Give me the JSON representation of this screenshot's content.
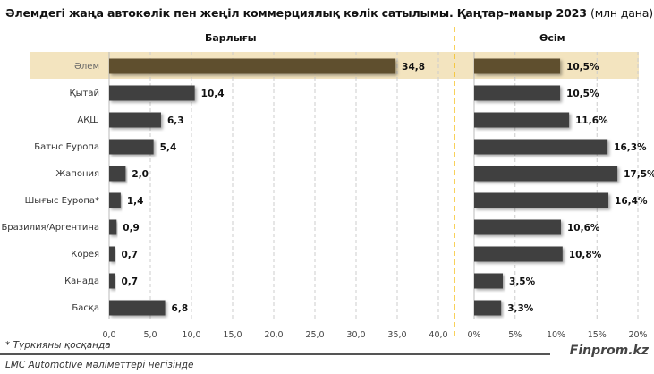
{
  "title": {
    "main": "Әлемдегі жаңа автокөлік пен жеңіл коммерциялық көлік сатылымы. Қаңтар–мамыр 2023",
    "unit": "(млн дана)"
  },
  "colors": {
    "bar": "#404040",
    "highlight_bar": "#5e4f2e",
    "highlight_band": "#f3e4bf",
    "divider": "#f5b800",
    "grid": "#cccccc"
  },
  "chart_data": [
    {
      "type": "bar",
      "orientation": "horizontal",
      "title": "Барлығы",
      "categories": [
        "Әлем",
        "Қытай",
        "АҚШ",
        "Батыс Еуропа",
        "Жапония",
        "Шығыс Еуропа*",
        "Бразилия/Аргентина",
        "Корея",
        "Канада",
        "Басқа"
      ],
      "values": [
        34.8,
        10.4,
        6.3,
        5.4,
        2.0,
        1.4,
        0.9,
        0.7,
        0.7,
        6.8
      ],
      "labels": [
        "34,8",
        "10,4",
        "6,3",
        "5,4",
        "2,0",
        "1,4",
        "0,9",
        "0,7",
        "0,7",
        "6,8"
      ],
      "xlim": [
        0,
        40
      ],
      "ticks": [
        0,
        5,
        10,
        15,
        20,
        25,
        30,
        35,
        40
      ],
      "tick_labels": [
        "0,0",
        "5,0",
        "10,0",
        "15,0",
        "20,0",
        "25,0",
        "30,0",
        "35,0",
        "40,0"
      ],
      "highlight": "Әлем",
      "grid": true
    },
    {
      "type": "bar",
      "orientation": "horizontal",
      "title": "Өсім",
      "categories": [
        "Әлем",
        "Қытай",
        "АҚШ",
        "Батыс Еуропа",
        "Жапония",
        "Шығыс Еуропа*",
        "Бразилия/Аргентина",
        "Корея",
        "Канада",
        "Басқа"
      ],
      "values": [
        10.5,
        10.5,
        11.6,
        16.3,
        17.5,
        16.4,
        10.6,
        10.8,
        3.5,
        3.3
      ],
      "labels": [
        "10,5%",
        "10,5%",
        "11,6%",
        "16,3%",
        "17,5%",
        "16,4%",
        "10,6%",
        "10,8%",
        "3,5%",
        "3,3%"
      ],
      "xlim": [
        0,
        20
      ],
      "ticks": [
        0,
        5,
        10,
        15,
        20
      ],
      "tick_labels": [
        "0%",
        "5%",
        "10%",
        "15%",
        "20%"
      ],
      "highlight": "Әлем",
      "grid": true
    }
  ],
  "footnote": "* Түркияны қосқанда",
  "source": "LMC Automotive мәліметтері негізінде",
  "brand": "Finprom.kz"
}
